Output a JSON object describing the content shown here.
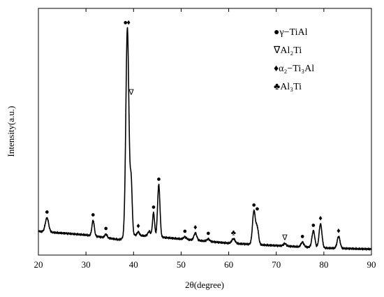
{
  "chart_data": {
    "type": "line",
    "xlabel": "2θ(degree)",
    "ylabel": "Intensity(a.u.)",
    "xlim": [
      20,
      90
    ],
    "xticks": [
      "20",
      "30",
      "40",
      "50",
      "60",
      "70",
      "80",
      "90"
    ],
    "yticks_shown": false,
    "legend_position": "top-right",
    "legend": [
      {
        "symbol": "●",
        "label": "γ−TiAl"
      },
      {
        "symbol": "∇",
        "label": "Al₂Ti"
      },
      {
        "symbol": "♦",
        "label": "α₂−Ti₃Al"
      },
      {
        "symbol": "♣",
        "label": "Al₃Ti"
      }
    ],
    "series": [
      {
        "color": "#000000",
        "baseline": [
          [
            20,
            0.1
          ],
          [
            30,
            0.085
          ],
          [
            37,
            0.065
          ],
          [
            40,
            0.085
          ],
          [
            46,
            0.075
          ],
          [
            60,
            0.05
          ],
          [
            70,
            0.04
          ],
          [
            80,
            0.03
          ],
          [
            90,
            0.025
          ]
        ],
        "peaks": [
          {
            "x": 21.8,
            "h": 0.06,
            "w": 0.35
          },
          {
            "x": 31.5,
            "h": 0.065,
            "w": 0.25
          },
          {
            "x": 34.2,
            "h": 0.015,
            "w": 0.25
          },
          {
            "x": 38.7,
            "h": 0.88,
            "w": 0.32
          },
          {
            "x": 39.5,
            "h": 0.22,
            "w": 0.22
          },
          {
            "x": 41.0,
            "h": 0.015,
            "w": 0.22
          },
          {
            "x": 43.3,
            "h": 0.02,
            "w": 0.3
          },
          {
            "x": 44.2,
            "h": 0.1,
            "w": 0.22
          },
          {
            "x": 45.3,
            "h": 0.22,
            "w": 0.25
          },
          {
            "x": 50.8,
            "h": 0.01,
            "w": 0.3
          },
          {
            "x": 53.0,
            "h": 0.03,
            "w": 0.3
          },
          {
            "x": 55.7,
            "h": 0.01,
            "w": 0.3
          },
          {
            "x": 61.0,
            "h": 0.02,
            "w": 0.35
          },
          {
            "x": 65.3,
            "h": 0.14,
            "w": 0.3
          },
          {
            "x": 66.0,
            "h": 0.07,
            "w": 0.28
          },
          {
            "x": 71.8,
            "h": 0.01,
            "w": 0.3
          },
          {
            "x": 75.5,
            "h": 0.02,
            "w": 0.3
          },
          {
            "x": 77.8,
            "h": 0.07,
            "w": 0.3
          },
          {
            "x": 79.3,
            "h": 0.1,
            "w": 0.3
          },
          {
            "x": 83.1,
            "h": 0.05,
            "w": 0.3
          }
        ]
      }
    ],
    "phase_markers": [
      {
        "x": 21.8,
        "symbol": "●"
      },
      {
        "x": 31.5,
        "symbol": "●"
      },
      {
        "x": 34.2,
        "symbol": "●"
      },
      {
        "x": 38.3,
        "symbol": "●"
      },
      {
        "x": 38.95,
        "symbol": "♦"
      },
      {
        "x": 39.5,
        "symbol": "∇"
      },
      {
        "x": 41.0,
        "symbol": "♦"
      },
      {
        "x": 44.2,
        "symbol": "●"
      },
      {
        "x": 45.3,
        "symbol": "●"
      },
      {
        "x": 50.8,
        "symbol": "●"
      },
      {
        "x": 53.0,
        "symbol": "♦"
      },
      {
        "x": 55.7,
        "symbol": "●"
      },
      {
        "x": 61.0,
        "symbol": "♣"
      },
      {
        "x": 65.3,
        "symbol": "●"
      },
      {
        "x": 66.0,
        "symbol": "●"
      },
      {
        "x": 71.8,
        "symbol": "∇"
      },
      {
        "x": 75.5,
        "symbol": "●"
      },
      {
        "x": 77.8,
        "symbol": "●"
      },
      {
        "x": 79.3,
        "symbol": "♦"
      },
      {
        "x": 83.1,
        "symbol": "♦"
      }
    ]
  }
}
